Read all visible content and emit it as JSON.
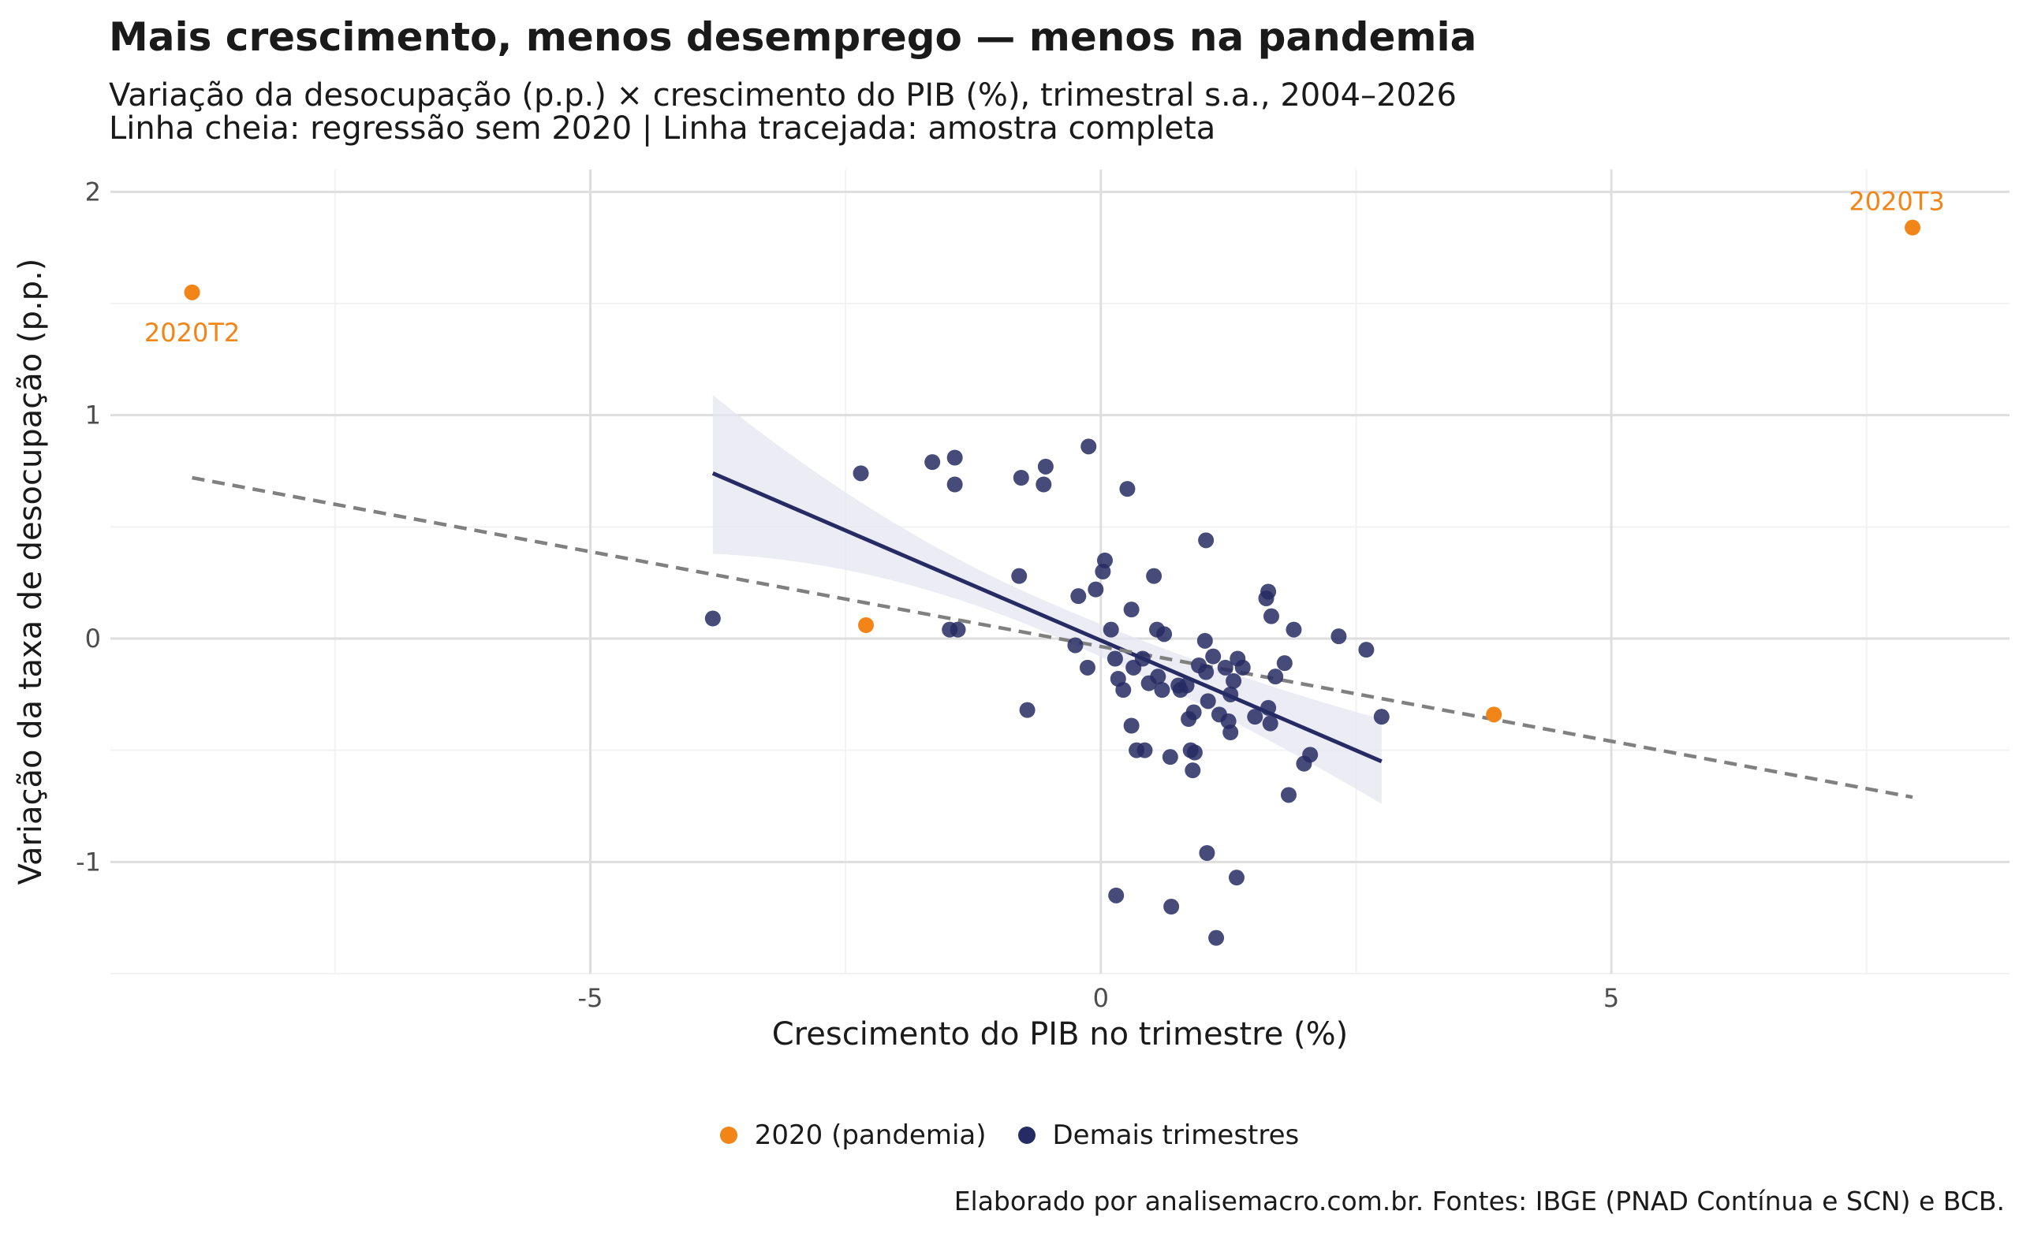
{
  "title": "Mais crescimento, menos desemprego — menos na pandemia",
  "subtitle_line1": "Variação da desocupação (p.p.) × crescimento do PIB (%), trimestral s.a., 2004–2026",
  "subtitle_line2": "Linha cheia: regressão sem 2020 | Linha tracejada: amostra completa",
  "caption": "Elaborado por analisemacro.com.br. Fontes: IBGE (PNAD Contínua e SCN) e BCB.",
  "colors": {
    "pandemic": "#F28518",
    "other": "#262B63",
    "dashed": "#808080",
    "ribbon": "#E4E6F0",
    "grid_major": "#DEDEDE",
    "grid_minor": "#F2F2F2"
  },
  "chart_data": {
    "type": "scatter",
    "xlabel": "Crescimento do PIB no trimestre (%)",
    "ylabel": "Variação da taxa de desocupação (p.p.)",
    "xlim": [
      -9.7,
      8.9
    ],
    "ylim": [
      -1.5,
      2.1
    ],
    "x_ticks": [
      -5,
      0,
      5
    ],
    "x_tick_labels": [
      "-5",
      "0",
      "5"
    ],
    "y_ticks": [
      -1,
      0,
      1,
      2
    ],
    "y_tick_labels": [
      "-1",
      "0",
      "1",
      "2"
    ],
    "grid": true,
    "legend_position": "bottom",
    "series": [
      {
        "name": "2020 (pandemia)",
        "color": "#F28518",
        "points": [
          {
            "x": -8.9,
            "y": 1.55,
            "label": "2020T2"
          },
          {
            "x": 7.95,
            "y": 1.84,
            "label": "2020T3"
          },
          {
            "x": -2.3,
            "y": 0.06
          },
          {
            "x": 3.85,
            "y": -0.34
          }
        ]
      },
      {
        "name": "Demais trimestres",
        "color": "#262B63",
        "points": [
          {
            "x": -3.8,
            "y": 0.09
          },
          {
            "x": -2.35,
            "y": 0.74
          },
          {
            "x": -1.65,
            "y": 0.79
          },
          {
            "x": -1.43,
            "y": 0.81
          },
          {
            "x": -1.43,
            "y": 0.69
          },
          {
            "x": -1.48,
            "y": 0.04
          },
          {
            "x": -1.4,
            "y": 0.04
          },
          {
            "x": -0.78,
            "y": 0.72
          },
          {
            "x": -0.54,
            "y": 0.77
          },
          {
            "x": -0.56,
            "y": 0.69
          },
          {
            "x": -0.12,
            "y": 0.86
          },
          {
            "x": -0.8,
            "y": 0.28
          },
          {
            "x": -0.72,
            "y": -0.32
          },
          {
            "x": -0.22,
            "y": 0.19
          },
          {
            "x": -0.05,
            "y": 0.22
          },
          {
            "x": 0.02,
            "y": 0.3
          },
          {
            "x": 0.04,
            "y": 0.35
          },
          {
            "x": 0.26,
            "y": 0.67
          },
          {
            "x": 0.52,
            "y": 0.28
          },
          {
            "x": 0.3,
            "y": 0.13
          },
          {
            "x": 1.03,
            "y": 0.44
          },
          {
            "x": 1.62,
            "y": 0.18
          },
          {
            "x": 1.64,
            "y": 0.21
          },
          {
            "x": 1.67,
            "y": 0.1
          },
          {
            "x": 1.89,
            "y": 0.04
          },
          {
            "x": 2.33,
            "y": 0.01
          },
          {
            "x": 2.6,
            "y": -0.05
          },
          {
            "x": 2.75,
            "y": -0.35
          },
          {
            "x": 0.55,
            "y": 0.04
          },
          {
            "x": 0.62,
            "y": 0.02
          },
          {
            "x": 0.1,
            "y": 0.04
          },
          {
            "x": -0.25,
            "y": -0.03
          },
          {
            "x": -0.13,
            "y": -0.13
          },
          {
            "x": 0.14,
            "y": -0.09
          },
          {
            "x": 0.17,
            "y": -0.18
          },
          {
            "x": 0.22,
            "y": -0.23
          },
          {
            "x": 0.32,
            "y": -0.13
          },
          {
            "x": 0.41,
            "y": -0.09
          },
          {
            "x": 0.47,
            "y": -0.2
          },
          {
            "x": 0.56,
            "y": -0.17
          },
          {
            "x": 0.6,
            "y": -0.23
          },
          {
            "x": 0.76,
            "y": -0.21
          },
          {
            "x": 0.78,
            "y": -0.23
          },
          {
            "x": 0.84,
            "y": -0.21
          },
          {
            "x": 0.86,
            "y": -0.36
          },
          {
            "x": 0.91,
            "y": -0.33
          },
          {
            "x": 0.96,
            "y": -0.12
          },
          {
            "x": 1.03,
            "y": -0.15
          },
          {
            "x": 1.05,
            "y": -0.28
          },
          {
            "x": 1.1,
            "y": -0.08
          },
          {
            "x": 1.16,
            "y": -0.34
          },
          {
            "x": 1.22,
            "y": -0.13
          },
          {
            "x": 1.25,
            "y": -0.37
          },
          {
            "x": 1.27,
            "y": -0.25
          },
          {
            "x": 1.3,
            "y": -0.19
          },
          {
            "x": 1.34,
            "y": -0.09
          },
          {
            "x": 1.39,
            "y": -0.13
          },
          {
            "x": 1.51,
            "y": -0.35
          },
          {
            "x": 1.64,
            "y": -0.31
          },
          {
            "x": 1.66,
            "y": -0.38
          },
          {
            "x": 1.71,
            "y": -0.17
          },
          {
            "x": 1.8,
            "y": -0.11
          },
          {
            "x": 1.02,
            "y": -0.01
          },
          {
            "x": 0.3,
            "y": -0.39
          },
          {
            "x": 0.35,
            "y": -0.5
          },
          {
            "x": 0.43,
            "y": -0.5
          },
          {
            "x": 0.68,
            "y": -0.53
          },
          {
            "x": 0.88,
            "y": -0.5
          },
          {
            "x": 0.92,
            "y": -0.51
          },
          {
            "x": 0.9,
            "y": -0.59
          },
          {
            "x": 1.27,
            "y": -0.42
          },
          {
            "x": 1.84,
            "y": -0.7
          },
          {
            "x": 1.99,
            "y": -0.56
          },
          {
            "x": 2.05,
            "y": -0.52
          },
          {
            "x": 1.04,
            "y": -0.96
          },
          {
            "x": 1.33,
            "y": -1.07
          },
          {
            "x": 0.15,
            "y": -1.15
          },
          {
            "x": 0.69,
            "y": -1.2
          },
          {
            "x": 1.13,
            "y": -1.34
          }
        ]
      }
    ],
    "regression_excl_2020": {
      "x_start": -3.8,
      "y_start": 0.74,
      "x_end": 2.75,
      "y_end": -0.55,
      "ci_start": [
        0.38,
        1.09
      ],
      "ci_end": [
        -0.74,
        -0.36
      ]
    },
    "regression_full": {
      "x_start": -8.9,
      "y_start": 0.72,
      "x_end": 7.95,
      "y_end": -0.71
    }
  }
}
